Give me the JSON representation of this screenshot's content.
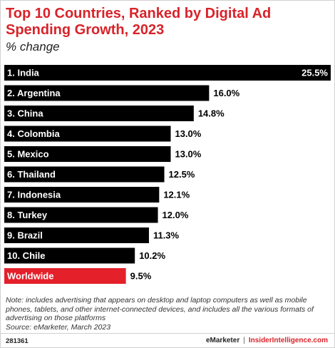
{
  "header": {
    "title": "Top 10 Countries, Ranked by Digital Ad Spending Growth, 2023",
    "subtitle": "% change"
  },
  "chart_data": {
    "type": "bar",
    "orientation": "horizontal",
    "title": "Top 10 Countries, Ranked by Digital Ad Spending Growth, 2023",
    "subtitle": "% change",
    "categories": [
      "1. India",
      "2. Argentina",
      "3. China",
      "4. Colombia",
      "5. Mexico",
      "6. Thailand",
      "7. Indonesia",
      "8. Turkey",
      "9. Brazil",
      "10. Chile",
      "Worldwide"
    ],
    "values": [
      25.5,
      16.0,
      14.8,
      13.0,
      13.0,
      12.5,
      12.1,
      12.0,
      11.3,
      10.2,
      9.5
    ],
    "value_labels": [
      "25.5%",
      "16.0%",
      "14.8%",
      "13.0%",
      "13.0%",
      "12.5%",
      "12.1%",
      "12.0%",
      "11.3%",
      "10.2%",
      "9.5%"
    ],
    "xlim": [
      0,
      25.5
    ],
    "grid": false,
    "legend": "none",
    "colors": {
      "bar": "#000000",
      "highlight_bar": "#e4202b",
      "bar_text": "#ffffff",
      "value_text": "#000000",
      "highlight_category": "Worldwide"
    }
  },
  "footer": {
    "note": "Note: includes advertising that appears on desktop and laptop computers as well as mobile phones, tablets, and other internet-connected devices, and includes all the various formats of advertising on those platforms",
    "source": "Source: eMarketer, March 2023",
    "chart_id": "281361",
    "brand_left": "eMarketer",
    "brand_separator": "|",
    "brand_right": "InsiderIntelligence.com"
  }
}
